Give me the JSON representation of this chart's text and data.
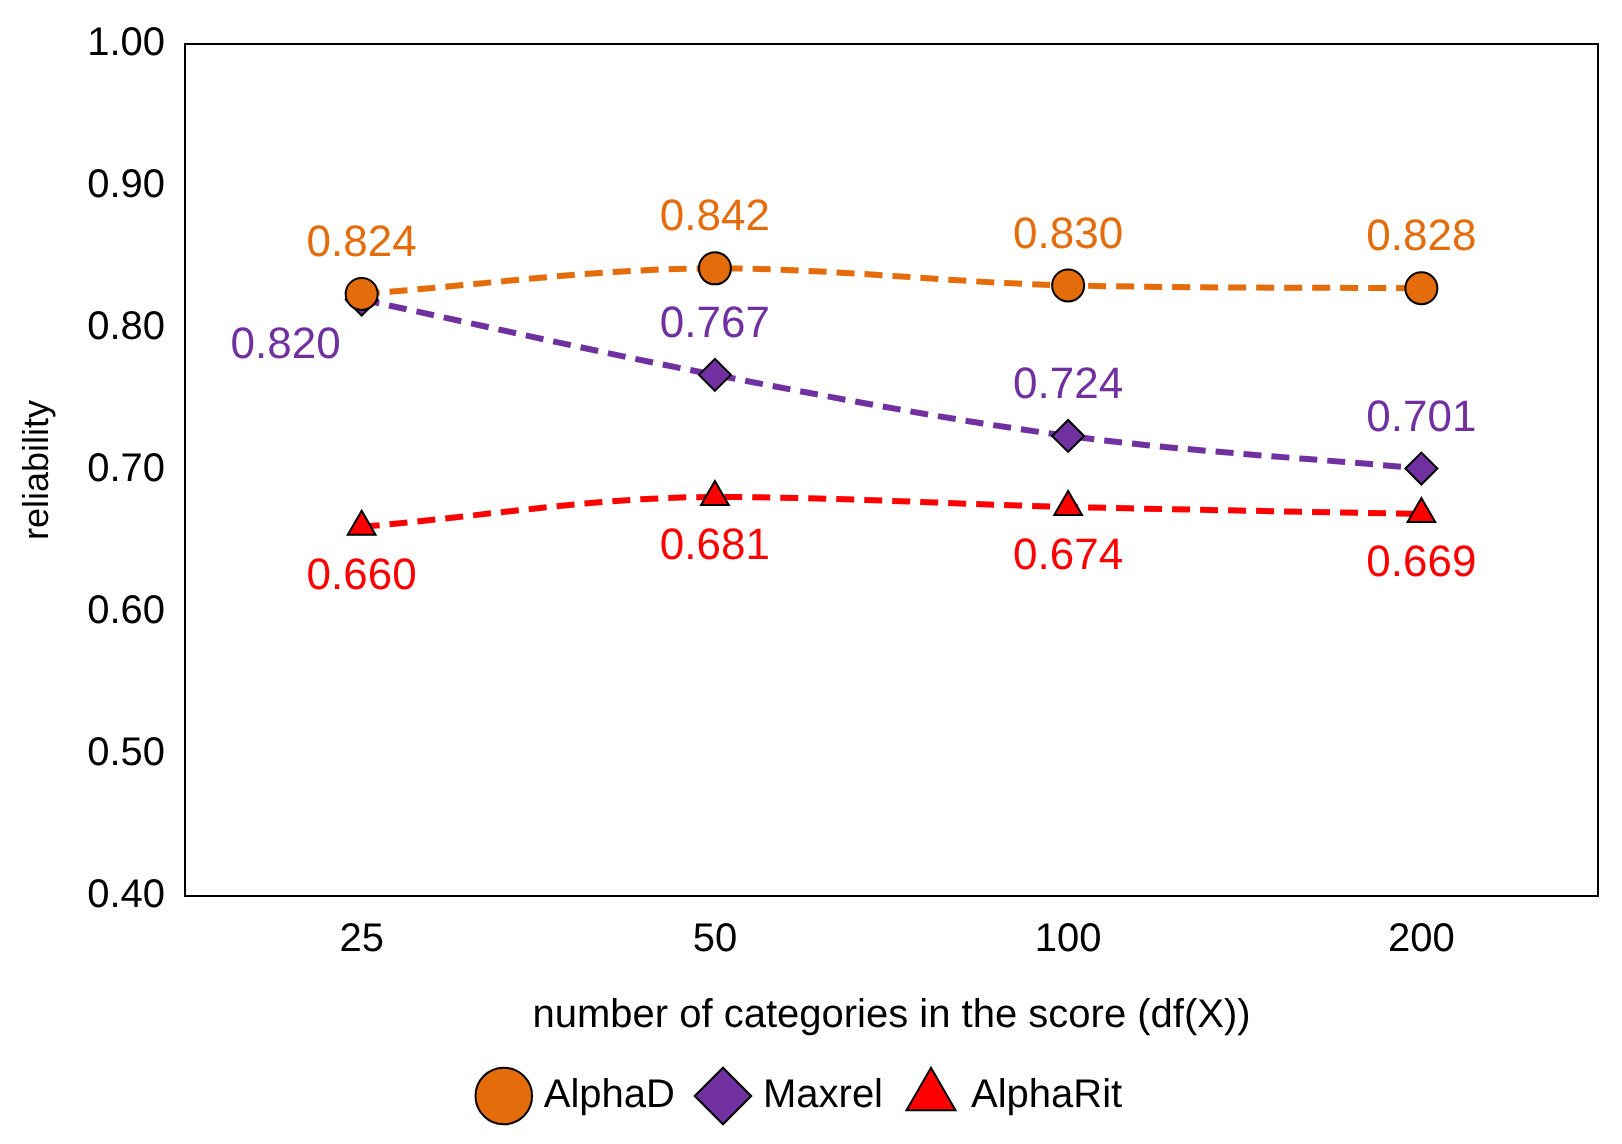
{
  "chart_data": {
    "type": "line",
    "xlabel": "number of categories in the score (df(X))",
    "ylabel": "reliability",
    "categories": [
      "25",
      "50",
      "100",
      "200"
    ],
    "ylim": [
      0.4,
      1.0
    ],
    "yticks": [
      {
        "value": 0.4,
        "label": "0.40"
      },
      {
        "value": 0.5,
        "label": "0.50"
      },
      {
        "value": 0.6,
        "label": "0.60"
      },
      {
        "value": 0.7,
        "label": "0.70"
      },
      {
        "value": 0.8,
        "label": "0.80"
      },
      {
        "value": 0.9,
        "label": "0.90"
      },
      {
        "value": 1.0,
        "label": "1.00"
      }
    ],
    "grid": false,
    "legend": "bottom",
    "line_style": "dashed",
    "series": [
      {
        "name": "AlphaD",
        "color": "#e46c0a",
        "marker": "circle",
        "values": [
          0.824,
          0.842,
          0.83,
          0.828
        ],
        "value_labels": [
          "0.824",
          "0.842",
          "0.830",
          "0.828"
        ]
      },
      {
        "name": "Maxrel",
        "color": "#7030a0",
        "marker": "diamond",
        "values": [
          0.82,
          0.767,
          0.724,
          0.701
        ],
        "value_labels": [
          "0.820",
          "0.767",
          "0.724",
          "0.701"
        ]
      },
      {
        "name": "AlphaRit",
        "color": "#ff0000",
        "marker": "triangle",
        "values": [
          0.66,
          0.681,
          0.674,
          0.669
        ],
        "value_labels": [
          "0.660",
          "0.681",
          "0.674",
          "0.669"
        ]
      }
    ]
  }
}
